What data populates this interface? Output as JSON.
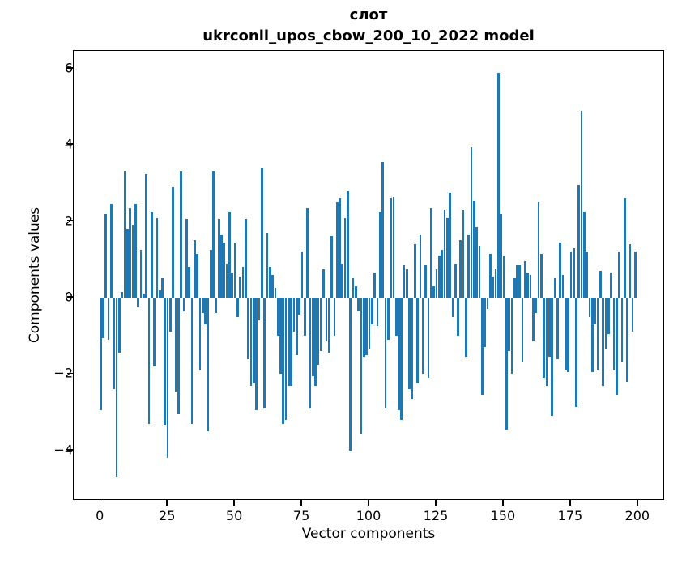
{
  "title": {
    "line1": "слот",
    "line2": "ukrconll_upos_cbow_200_10_2022 model"
  },
  "axes": {
    "x_label": "Vector components",
    "y_label": "Components values"
  },
  "colors": {
    "bar": "#1f77b4",
    "axis": "#000000"
  },
  "chart_data": {
    "type": "bar",
    "title": "слот\nukrconll_upos_cbow_200_10_2022 model",
    "xlabel": "Vector components",
    "ylabel": "Components values",
    "x_ticks": [
      0,
      25,
      50,
      75,
      100,
      125,
      150,
      175,
      200
    ],
    "y_ticks": [
      6,
      4,
      2,
      0,
      -2,
      -4
    ],
    "xlim": [
      -10,
      210
    ],
    "ylim": [
      -5.3,
      6.45
    ],
    "grid": false,
    "legend": null,
    "n_bars": 200,
    "values": [
      -2.95,
      -1.05,
      2.2,
      -1.1,
      2.45,
      -2.4,
      -4.7,
      -1.45,
      0.15,
      3.3,
      1.8,
      2.35,
      1.9,
      2.45,
      -0.25,
      1.25,
      0.1,
      3.25,
      -3.3,
      2.25,
      -1.8,
      2.1,
      0.2,
      0.5,
      -3.35,
      -4.2,
      -0.9,
      2.9,
      -2.45,
      -3.05,
      3.3,
      -0.35,
      2.05,
      0.8,
      -3.3,
      1.5,
      1.15,
      -1.9,
      -0.4,
      -0.7,
      -3.5,
      1.25,
      3.3,
      -0.4,
      2.05,
      1.65,
      1.45,
      0.9,
      2.25,
      0.65,
      1.45,
      -0.5,
      0.55,
      0.8,
      2.05,
      -1.6,
      -2.3,
      -2.25,
      -2.95,
      -0.6,
      3.4,
      -2.9,
      1.7,
      0.8,
      0.6,
      0.25,
      -1.0,
      -2.0,
      -3.3,
      -3.2,
      -2.3,
      -2.3,
      -0.9,
      -1.5,
      -0.45,
      1.2,
      -1.0,
      2.35,
      -2.9,
      -2.05,
      -2.3,
      -1.75,
      -1.4,
      0.75,
      -1.15,
      -1.45,
      1.6,
      -1.0,
      2.5,
      2.6,
      0.9,
      2.1,
      2.8,
      -4.0,
      0.5,
      0.3,
      -0.35,
      -3.55,
      -1.55,
      -1.5,
      -1.35,
      -0.7,
      0.65,
      -0.75,
      2.25,
      3.55,
      -2.9,
      -1.1,
      2.6,
      2.65,
      -1.0,
      -2.95,
      -3.2,
      0.85,
      0.75,
      -2.4,
      -2.65,
      1.4,
      -2.25,
      1.65,
      -2.0,
      0.85,
      -2.1,
      2.35,
      0.3,
      0.75,
      1.1,
      1.25,
      2.3,
      2.1,
      2.75,
      -0.5,
      0.9,
      -1.0,
      1.5,
      2.3,
      -1.55,
      1.65,
      3.95,
      2.55,
      1.85,
      1.35,
      -2.55,
      -1.3,
      -0.3,
      1.15,
      0.55,
      0.75,
      5.9,
      2.2,
      1.1,
      -3.45,
      -1.4,
      -2.0,
      0.5,
      0.85,
      0.85,
      -1.7,
      0.95,
      0.65,
      0.6,
      -1.15,
      -0.4,
      2.5,
      1.15,
      -2.1,
      -2.3,
      -1.55,
      -3.1,
      0.5,
      -1.6,
      1.45,
      0.6,
      -1.9,
      -1.95,
      1.2,
      1.3,
      -2.85,
      2.95,
      4.9,
      2.25,
      1.2,
      -0.5,
      -1.95,
      -0.7,
      -1.9,
      0.7,
      -2.3,
      -1.35,
      -0.95,
      0.65,
      -1.9,
      -2.55,
      1.2,
      -1.7,
      2.6,
      -2.2,
      1.4,
      -0.9,
      1.2
    ]
  }
}
